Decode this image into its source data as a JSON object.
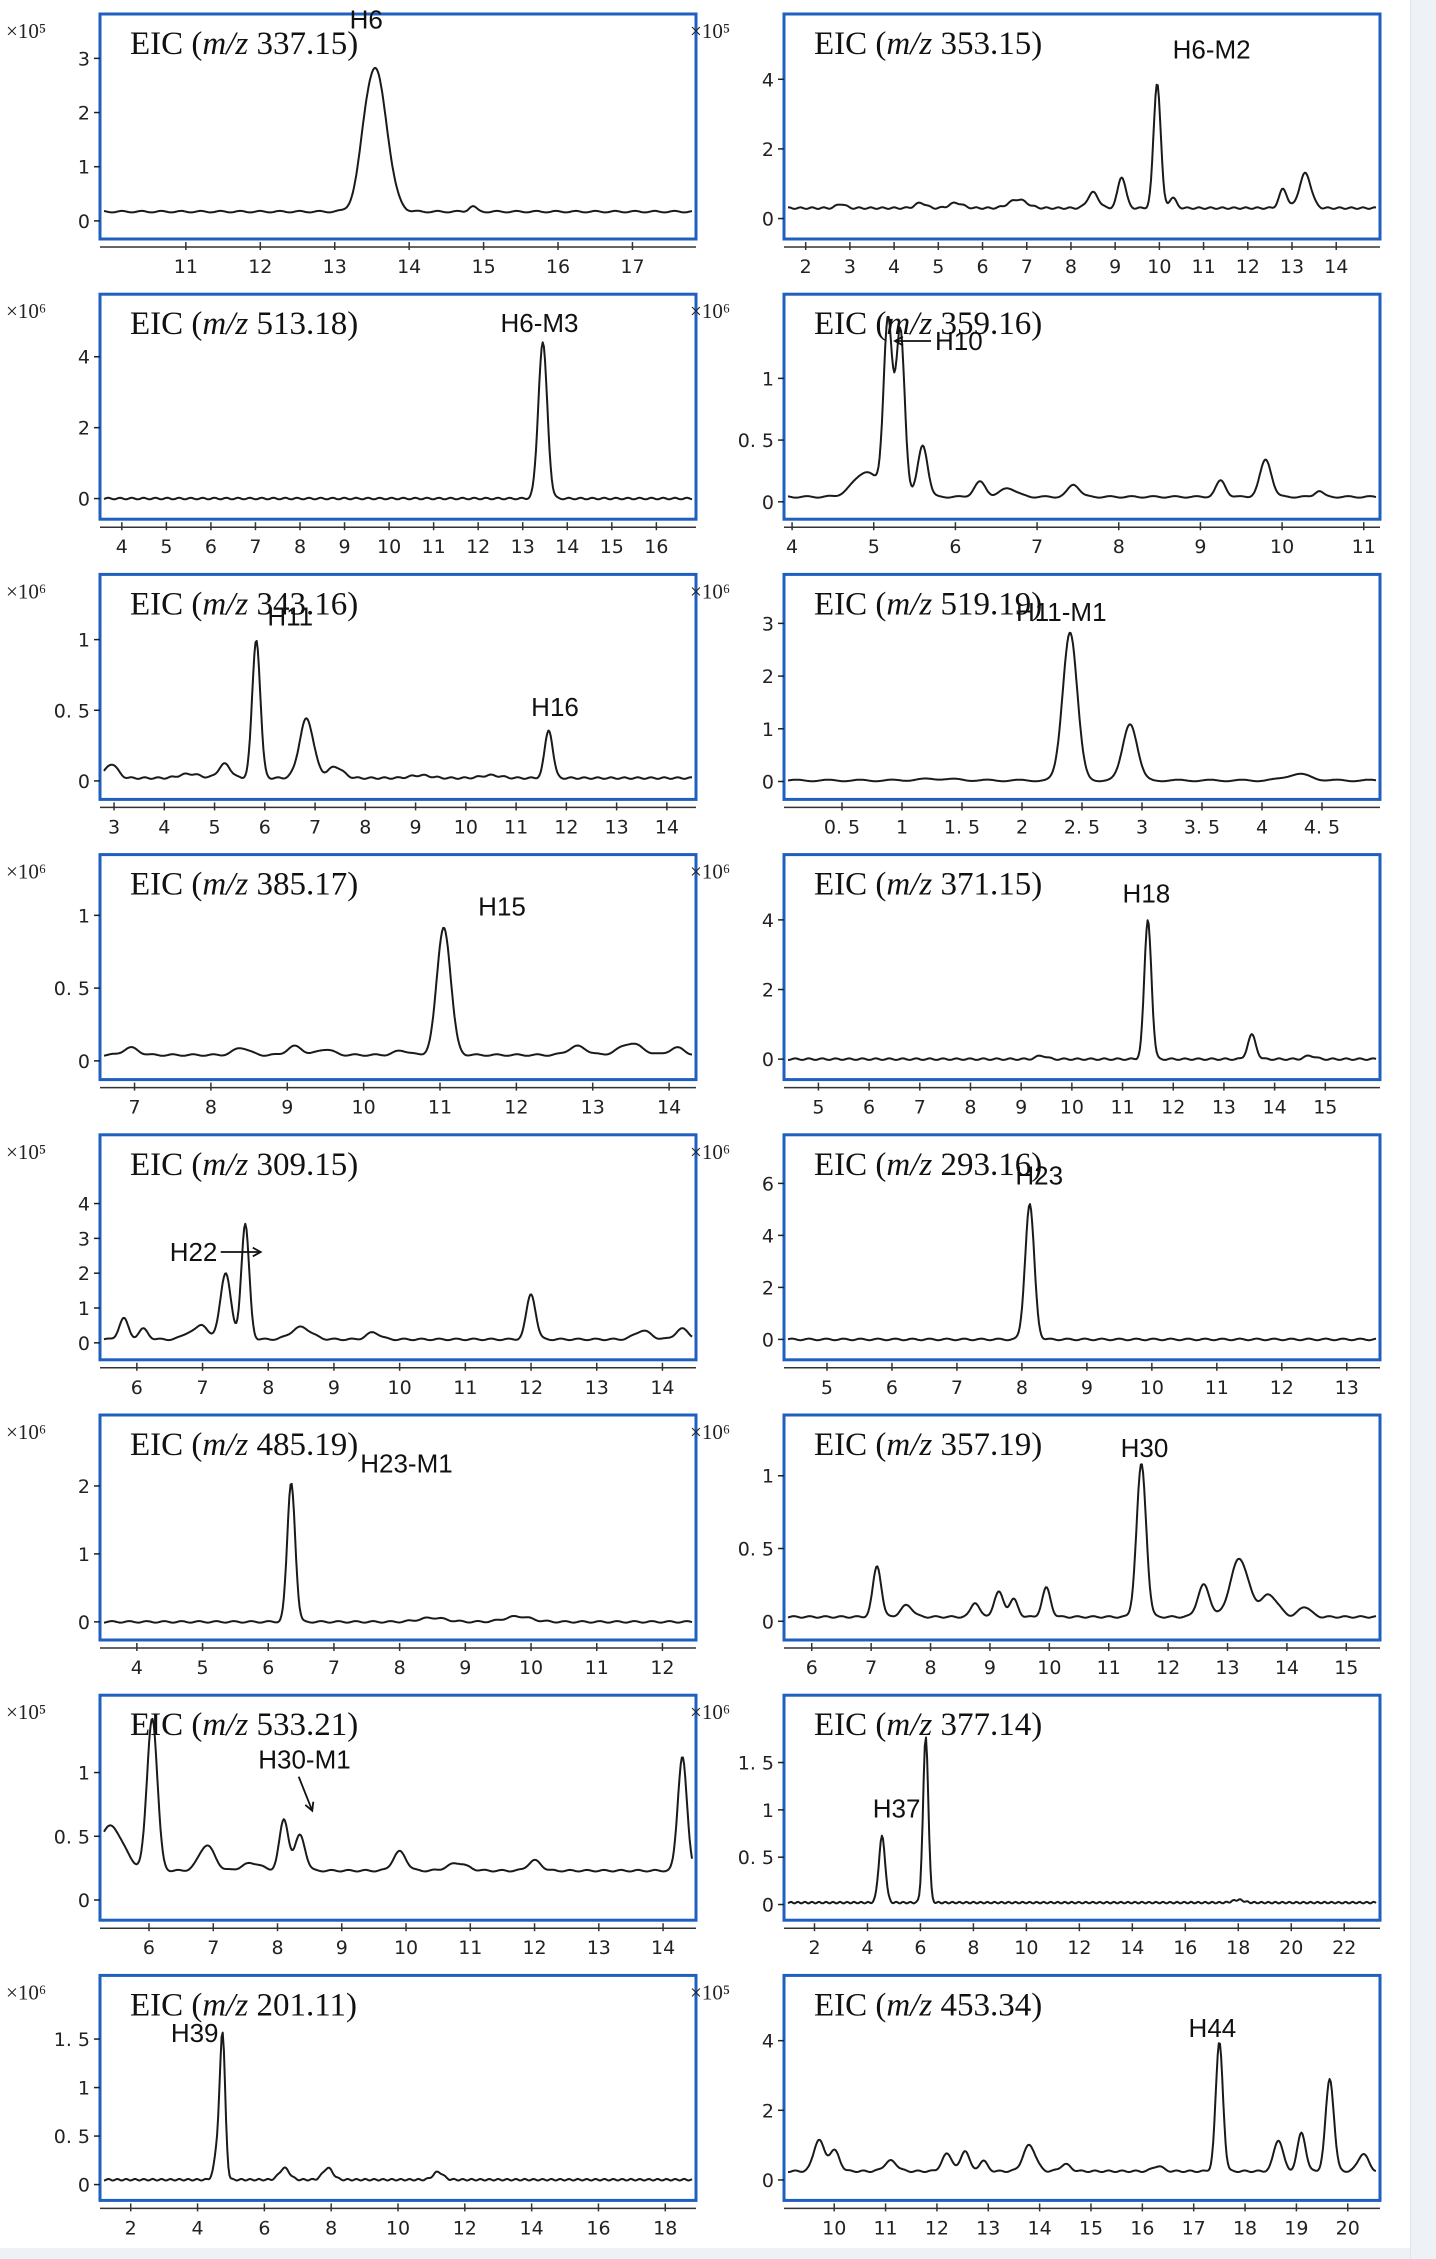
{
  "chart_data": [
    {
      "type": "line",
      "title": "EIC (m/z 337.15)",
      "title_prefix": "EIC (",
      "title_mz": "m/z",
      "title_value": "337.15)",
      "multiplier": "×10⁵",
      "xlim": [
        9.9,
        17.8
      ],
      "xticks": [
        11,
        12,
        13,
        14,
        15,
        16,
        17
      ],
      "ylim": [
        -0.15,
        3.45
      ],
      "yticks": [
        "0",
        "1",
        "2",
        "3"
      ],
      "baseline": 0.17,
      "peaks": [
        [
          13.55,
          2.6,
          0.15
        ],
        [
          13.4,
          0.25,
          0.08
        ],
        [
          14.85,
          0.1,
          0.05
        ]
      ],
      "labels": [
        {
          "text": "H6",
          "x": 13.2,
          "y": 3.55
        }
      ]
    },
    {
      "type": "line",
      "title": "EIC (m/z 353.15)",
      "title_prefix": "EIC (",
      "title_mz": "m/z",
      "title_value": "353.15)",
      "multiplier": "×10⁵",
      "xlim": [
        1.6,
        14.9
      ],
      "xticks": [
        2,
        3,
        4,
        5,
        6,
        7,
        8,
        9,
        10,
        11,
        12,
        13,
        14
      ],
      "ylim": [
        -0.3,
        5.3
      ],
      "yticks": [
        "0",
        "2",
        "4"
      ],
      "baseline": 0.3,
      "peaks": [
        [
          9.95,
          3.6,
          0.08
        ],
        [
          9.15,
          0.9,
          0.09
        ],
        [
          8.5,
          0.45,
          0.12
        ],
        [
          12.8,
          0.55,
          0.09
        ],
        [
          13.3,
          1.0,
          0.13
        ],
        [
          6.8,
          0.25,
          0.2
        ],
        [
          10.3,
          0.3,
          0.08
        ],
        [
          4.6,
          0.15,
          0.12
        ],
        [
          2.8,
          0.12,
          0.1
        ],
        [
          5.4,
          0.15,
          0.15
        ]
      ],
      "labels": [
        {
          "text": "H6-M2",
          "x": 10.3,
          "y": 4.6
        }
      ]
    },
    {
      "type": "line",
      "title": "EIC (m/z 513.18)",
      "title_prefix": "EIC (",
      "title_mz": "m/z",
      "title_value": "513.18)",
      "multiplier": "×10⁶",
      "xlim": [
        3.6,
        16.8
      ],
      "xticks": [
        4,
        5,
        6,
        7,
        8,
        9,
        10,
        11,
        12,
        13,
        14,
        15,
        16
      ],
      "ylim": [
        -0.3,
        5.2
      ],
      "yticks": [
        "0",
        "2",
        "4"
      ],
      "baseline": 0.0,
      "peaks": [
        [
          13.45,
          4.4,
          0.1
        ]
      ],
      "labels": [
        {
          "text": "H6-M3",
          "x": 12.5,
          "y": 4.7
        }
      ]
    },
    {
      "type": "line",
      "title": "EIC (m/z 359.16)",
      "title_prefix": "EIC (",
      "title_mz": "m/z",
      "title_value": "359.16)",
      "multiplier": "×10⁶",
      "xlim": [
        3.95,
        11.15
      ],
      "xticks": [
        "4",
        "5",
        "6",
        "7",
        "8",
        "9",
        "10",
        "11"
      ],
      "ylim": [
        -0.06,
        1.52
      ],
      "yticks": [
        "0",
        "0. 5",
        "1"
      ],
      "baseline": 0.04,
      "peaks": [
        [
          5.17,
          1.18,
          0.05
        ],
        [
          5.33,
          1.12,
          0.05
        ],
        [
          5.25,
          0.35,
          0.09
        ],
        [
          5.6,
          0.42,
          0.06
        ],
        [
          4.9,
          0.2,
          0.15
        ],
        [
          6.3,
          0.12,
          0.07
        ],
        [
          6.65,
          0.07,
          0.1
        ],
        [
          7.45,
          0.1,
          0.07
        ],
        [
          9.25,
          0.13,
          0.06
        ],
        [
          9.8,
          0.3,
          0.07
        ],
        [
          10.45,
          0.05,
          0.05
        ]
      ],
      "labels": [
        {
          "text": "H10",
          "x": 5.75,
          "y": 1.23
        }
      ]
    },
    {
      "type": "line",
      "title": "EIC (m/z 343.16)",
      "title_prefix": "EIC (",
      "title_mz": "m/z",
      "title_value": "343.16)",
      "multiplier": "×10⁶",
      "xlim": [
        2.8,
        14.5
      ],
      "xticks": [
        "3",
        "4",
        "5",
        "6",
        "7",
        "8",
        "9",
        "10",
        "11",
        "12",
        "13",
        "14"
      ],
      "ylim": [
        -0.06,
        1.32
      ],
      "yticks": [
        "0",
        "0. 5",
        "1"
      ],
      "baseline": 0.02,
      "peaks": [
        [
          5.83,
          0.98,
          0.08
        ],
        [
          6.83,
          0.42,
          0.14
        ],
        [
          5.2,
          0.1,
          0.12
        ],
        [
          11.65,
          0.34,
          0.08
        ],
        [
          2.95,
          0.1,
          0.12
        ],
        [
          7.4,
          0.08,
          0.15
        ],
        [
          4.5,
          0.03,
          0.2
        ],
        [
          9.1,
          0.02,
          0.2
        ],
        [
          10.5,
          0.02,
          0.2
        ]
      ],
      "labels": [
        {
          "text": "H11",
          "x": 6.05,
          "y": 1.1
        },
        {
          "text": "H16",
          "x": 11.3,
          "y": 0.46
        }
      ]
    },
    {
      "type": "line",
      "title": "EIC (m/z 519.19)",
      "title_prefix": "EIC (",
      "title_mz": "m/z",
      "title_value": "519.19)",
      "multiplier": "×10⁶",
      "xlim": [
        0.05,
        4.95
      ],
      "xticks": [
        "0. 5",
        "1",
        "1. 5",
        "2",
        "2. 5",
        "3",
        "3. 5",
        "4",
        "4. 5"
      ],
      "ylim": [
        -0.15,
        3.55
      ],
      "yticks": [
        "0",
        "1",
        "2",
        "3"
      ],
      "baseline": 0.02,
      "peaks": [
        [
          2.4,
          2.82,
          0.06
        ],
        [
          2.9,
          1.08,
          0.06
        ],
        [
          4.3,
          0.12,
          0.1
        ],
        [
          1.3,
          0.03,
          0.15
        ]
      ],
      "labels": [
        {
          "text": "H11-M1",
          "x": 1.95,
          "y": 3.05
        }
      ]
    },
    {
      "type": "line",
      "title": "EIC (m/z 385.17)",
      "title_prefix": "EIC (",
      "title_mz": "m/z",
      "title_value": "385.17)",
      "multiplier": "×10⁶",
      "xlim": [
        6.6,
        14.3
      ],
      "xticks": [
        "7",
        "8",
        "9",
        "10",
        "11",
        "12",
        "13",
        "14"
      ],
      "ylim": [
        -0.06,
        1.28
      ],
      "yticks": [
        "0",
        "0. 5",
        "1"
      ],
      "baseline": 0.04,
      "peaks": [
        [
          11.05,
          0.88,
          0.09
        ],
        [
          6.95,
          0.05,
          0.1
        ],
        [
          8.4,
          0.05,
          0.1
        ],
        [
          9.1,
          0.06,
          0.1
        ],
        [
          9.5,
          0.04,
          0.1
        ],
        [
          10.5,
          0.03,
          0.1
        ],
        [
          12.8,
          0.06,
          0.12
        ],
        [
          13.5,
          0.08,
          0.15
        ],
        [
          14.1,
          0.05,
          0.1
        ]
      ],
      "labels": [
        {
          "text": "H15",
          "x": 11.5,
          "y": 1.0
        }
      ]
    },
    {
      "type": "line",
      "title": "EIC (m/z 371.15)",
      "title_prefix": "EIC (",
      "title_mz": "m/z",
      "title_value": "371.15)",
      "multiplier": "×10⁶",
      "xlim": [
        4.4,
        16.0
      ],
      "xticks": [
        "5",
        "6",
        "7",
        "8",
        "9",
        "10",
        "11",
        "12",
        "13",
        "14",
        "15"
      ],
      "ylim": [
        -0.3,
        5.3
      ],
      "yticks": [
        "0",
        "2",
        "4"
      ],
      "baseline": 0.0,
      "peaks": [
        [
          11.5,
          4.0,
          0.07
        ],
        [
          13.55,
          0.7,
          0.08
        ],
        [
          9.4,
          0.1,
          0.1
        ],
        [
          14.7,
          0.1,
          0.1
        ]
      ],
      "labels": [
        {
          "text": "H18",
          "x": 11.0,
          "y": 4.5
        }
      ]
    },
    {
      "type": "line",
      "title": "EIC (m/z 309.15)",
      "title_prefix": "EIC (",
      "title_mz": "m/z",
      "title_value": "309.15)",
      "multiplier": "×10⁵",
      "xlim": [
        5.5,
        14.45
      ],
      "xticks": [
        "6",
        "7",
        "8",
        "9",
        "10",
        "11",
        "12",
        "13",
        "14"
      ],
      "ylim": [
        -0.2,
        5.4
      ],
      "yticks": [
        "0",
        "1",
        "2",
        "3",
        "4"
      ],
      "baseline": 0.1,
      "peaks": [
        [
          7.65,
          3.3,
          0.06
        ],
        [
          7.35,
          1.9,
          0.08
        ],
        [
          12.0,
          1.3,
          0.07
        ],
        [
          5.8,
          0.6,
          0.07
        ],
        [
          6.1,
          0.3,
          0.07
        ],
        [
          8.5,
          0.35,
          0.15
        ],
        [
          9.6,
          0.2,
          0.1
        ],
        [
          13.7,
          0.25,
          0.12
        ],
        [
          14.3,
          0.3,
          0.1
        ],
        [
          6.8,
          0.2,
          0.1
        ],
        [
          7.0,
          0.4,
          0.08
        ]
      ],
      "labels": [
        {
          "text": "H22",
          "x": 6.5,
          "y": 2.35
        }
      ]
    },
    {
      "type": "line",
      "title": "EIC (m/z 293.16)",
      "title_prefix": "EIC (",
      "title_mz": "m/z",
      "title_value": "293.16)",
      "multiplier": "×10⁶",
      "xlim": [
        4.4,
        13.45
      ],
      "xticks": [
        "5",
        "6",
        "7",
        "8",
        "9",
        "10",
        "11",
        "12",
        "13"
      ],
      "ylim": [
        -0.4,
        7.1
      ],
      "yticks": [
        "0",
        "2",
        "4",
        "6"
      ],
      "baseline": 0.0,
      "peaks": [
        [
          8.12,
          5.2,
          0.07
        ]
      ],
      "labels": [
        {
          "text": "H23",
          "x": 7.9,
          "y": 5.95
        }
      ]
    },
    {
      "type": "line",
      "title": "EIC (m/z 485.19)",
      "title_prefix": "EIC (",
      "title_mz": "m/z",
      "title_value": "485.19)",
      "multiplier": "×10⁶",
      "xlim": [
        3.5,
        12.45
      ],
      "xticks": [
        "4",
        "5",
        "6",
        "7",
        "8",
        "9",
        "10",
        "11",
        "12"
      ],
      "ylim": [
        -0.12,
        2.75
      ],
      "yticks": [
        "0",
        "1",
        "2"
      ],
      "baseline": 0.0,
      "peaks": [
        [
          6.35,
          2.05,
          0.06
        ],
        [
          8.5,
          0.06,
          0.2
        ],
        [
          9.8,
          0.08,
          0.2
        ]
      ],
      "labels": [
        {
          "text": "H23-M1",
          "x": 7.4,
          "y": 2.2
        }
      ]
    },
    {
      "type": "line",
      "title": "EIC (m/z 357.19)",
      "title_prefix": "EIC (",
      "title_mz": "m/z",
      "title_value": "357.19)",
      "multiplier": "×10⁶",
      "xlim": [
        5.6,
        15.5
      ],
      "xticks": [
        "6",
        "7",
        "8",
        "9",
        "10",
        "11",
        "12",
        "13",
        "14",
        "15"
      ],
      "ylim": [
        -0.06,
        1.28
      ],
      "yticks": [
        "0",
        "0. 5",
        "1"
      ],
      "baseline": 0.03,
      "peaks": [
        [
          11.55,
          1.05,
          0.08
        ],
        [
          7.1,
          0.35,
          0.07
        ],
        [
          9.15,
          0.17,
          0.08
        ],
        [
          9.4,
          0.12,
          0.07
        ],
        [
          9.95,
          0.2,
          0.07
        ],
        [
          8.75,
          0.1,
          0.07
        ],
        [
          12.6,
          0.22,
          0.1
        ],
        [
          13.2,
          0.4,
          0.15
        ],
        [
          13.7,
          0.15,
          0.15
        ],
        [
          7.6,
          0.08,
          0.1
        ],
        [
          14.3,
          0.07,
          0.1
        ]
      ],
      "labels": [
        {
          "text": "H30",
          "x": 11.2,
          "y": 1.13
        }
      ]
    },
    {
      "type": "line",
      "title": "EIC (m/z 533.21)",
      "title_prefix": "EIC (",
      "title_mz": "m/z",
      "title_value": "533.21)",
      "multiplier": "×10⁵",
      "xlim": [
        5.3,
        14.45
      ],
      "xticks": [
        "6",
        "7",
        "8",
        "9",
        "10",
        "11",
        "12",
        "13",
        "14"
      ],
      "ylim": [
        -0.08,
        1.45
      ],
      "yticks": [
        "0",
        "0. 5",
        "1"
      ],
      "baseline": 0.23,
      "peaks": [
        [
          6.05,
          1.2,
          0.08
        ],
        [
          5.4,
          0.35,
          0.2
        ],
        [
          6.9,
          0.2,
          0.12
        ],
        [
          8.1,
          0.4,
          0.07
        ],
        [
          8.35,
          0.28,
          0.08
        ],
        [
          9.9,
          0.15,
          0.1
        ],
        [
          12.0,
          0.08,
          0.1
        ],
        [
          14.3,
          0.9,
          0.07
        ],
        [
          7.6,
          0.06,
          0.15
        ],
        [
          10.8,
          0.06,
          0.15
        ]
      ],
      "labels": [
        {
          "text": "H30-M1",
          "x": 7.7,
          "y": 1.03
        }
      ]
    },
    {
      "type": "line",
      "title": "EIC (m/z 377.14)",
      "title_prefix": "EIC (",
      "title_mz": "m/z",
      "title_value": "377.14)",
      "multiplier": "×10⁶",
      "xlim": [
        1.0,
        23.2
      ],
      "xticks": [
        "2",
        "4",
        "6",
        "8",
        "10",
        "12",
        "14",
        "16",
        "18",
        "20",
        "22"
      ],
      "ylim": [
        -0.06,
        2.0
      ],
      "yticks": [
        "0",
        "0. 5",
        "1",
        "1. 5"
      ],
      "baseline": 0.02,
      "peaks": [
        [
          4.55,
          0.7,
          0.12
        ],
        [
          6.2,
          1.75,
          0.1
        ],
        [
          18.0,
          0.03,
          0.2
        ]
      ],
      "labels": [
        {
          "text": "H37",
          "x": 4.2,
          "y": 0.92
        }
      ]
    },
    {
      "type": "line",
      "title": "EIC (m/z 201.11)",
      "title_prefix": "EIC (",
      "title_mz": "m/z",
      "title_value": "201.11)",
      "multiplier": "×10⁶",
      "xlim": [
        1.2,
        18.8
      ],
      "xticks": [
        "2",
        "4",
        "6",
        "8",
        "10",
        "12",
        "14",
        "16",
        "18"
      ],
      "ylim": [
        -0.06,
        1.95
      ],
      "yticks": [
        "0",
        "0. 5",
        "1",
        "1. 5"
      ],
      "baseline": 0.05,
      "peaks": [
        [
          4.75,
          1.42,
          0.08
        ],
        [
          4.6,
          0.3,
          0.1
        ],
        [
          6.6,
          0.12,
          0.15
        ],
        [
          7.9,
          0.12,
          0.15
        ],
        [
          11.2,
          0.08,
          0.15
        ]
      ],
      "labels": [
        {
          "text": "H39",
          "x": 3.2,
          "y": 1.47
        }
      ]
    },
    {
      "type": "line",
      "title": "EIC (m/z 453.34)",
      "title_prefix": "EIC (",
      "title_mz": "m/z",
      "title_value": "453.34)",
      "multiplier": "×10⁵",
      "xlim": [
        9.1,
        20.55
      ],
      "xticks": [
        "10",
        "11",
        "12",
        "13",
        "14",
        "15",
        "16",
        "17",
        "18",
        "19",
        "20"
      ],
      "ylim": [
        -0.3,
        5.3
      ],
      "yticks": [
        "0",
        "2",
        "4"
      ],
      "baseline": 0.25,
      "peaks": [
        [
          17.5,
          3.7,
          0.07
        ],
        [
          19.65,
          2.65,
          0.08
        ],
        [
          9.7,
          0.9,
          0.1
        ],
        [
          10.0,
          0.6,
          0.1
        ],
        [
          11.1,
          0.3,
          0.12
        ],
        [
          12.2,
          0.5,
          0.1
        ],
        [
          12.55,
          0.6,
          0.08
        ],
        [
          12.9,
          0.3,
          0.08
        ],
        [
          13.8,
          0.75,
          0.12
        ],
        [
          14.5,
          0.2,
          0.1
        ],
        [
          16.3,
          0.15,
          0.1
        ],
        [
          18.65,
          0.9,
          0.09
        ],
        [
          19.1,
          1.1,
          0.08
        ],
        [
          20.3,
          0.5,
          0.1
        ]
      ],
      "labels": [
        {
          "text": "H44",
          "x": 16.9,
          "y": 4.1
        }
      ]
    }
  ],
  "accent_color": "#1f5fbf"
}
